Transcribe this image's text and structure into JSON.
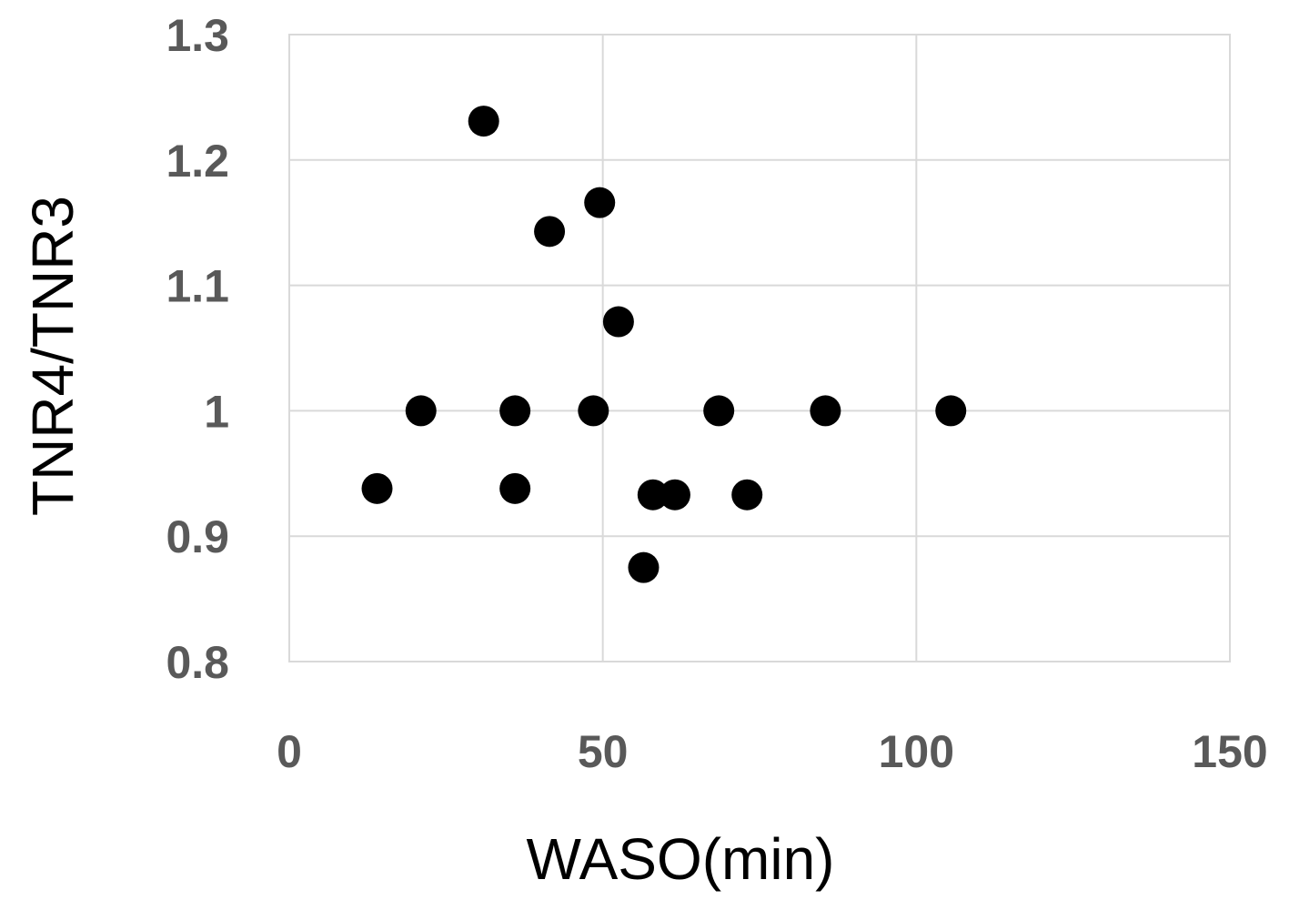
{
  "chart_data": {
    "type": "scatter",
    "title": "",
    "xlabel": "WASO(min)",
    "ylabel": "TNR4/TNR3",
    "xlim": [
      0,
      150
    ],
    "ylim": [
      0.8,
      1.3
    ],
    "x_ticks": [
      "0",
      "50",
      "100",
      "150"
    ],
    "y_ticks": [
      "0.8",
      "0.9",
      "1",
      "1.1",
      "1.2",
      "1.3"
    ],
    "grid": true,
    "legend": "none",
    "marker_color": "#000000",
    "series": [
      {
        "points": [
          {
            "x": 31,
            "y": 1.231
          },
          {
            "x": 49.5,
            "y": 1.166
          },
          {
            "x": 41.5,
            "y": 1.143
          },
          {
            "x": 52.5,
            "y": 1.071
          },
          {
            "x": 21,
            "y": 1.0
          },
          {
            "x": 36,
            "y": 1.0
          },
          {
            "x": 48.5,
            "y": 1.0
          },
          {
            "x": 68.5,
            "y": 1.0
          },
          {
            "x": 85.5,
            "y": 1.0
          },
          {
            "x": 105.5,
            "y": 1.0
          },
          {
            "x": 14,
            "y": 0.938
          },
          {
            "x": 36,
            "y": 0.938
          },
          {
            "x": 58,
            "y": 0.933
          },
          {
            "x": 61.5,
            "y": 0.933
          },
          {
            "x": 73,
            "y": 0.933
          },
          {
            "x": 56.5,
            "y": 0.875
          }
        ]
      }
    ]
  }
}
